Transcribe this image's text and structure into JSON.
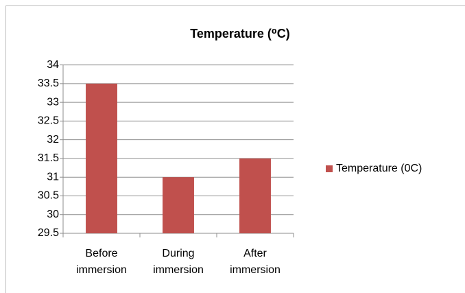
{
  "chart_data": {
    "type": "bar",
    "title": "Temperature (⁰C)",
    "categories": [
      "Before immersion",
      "During immersion",
      "After immersion"
    ],
    "series": [
      {
        "name": "Temperature (0C)",
        "color": "#c0504d",
        "values": [
          33.5,
          31,
          31.5
        ]
      }
    ],
    "ylim": [
      29.5,
      34
    ],
    "yticks": [
      29.5,
      30,
      30.5,
      31,
      31.5,
      32,
      32.5,
      33,
      33.5,
      34
    ],
    "grid": true,
    "legend": "right"
  }
}
